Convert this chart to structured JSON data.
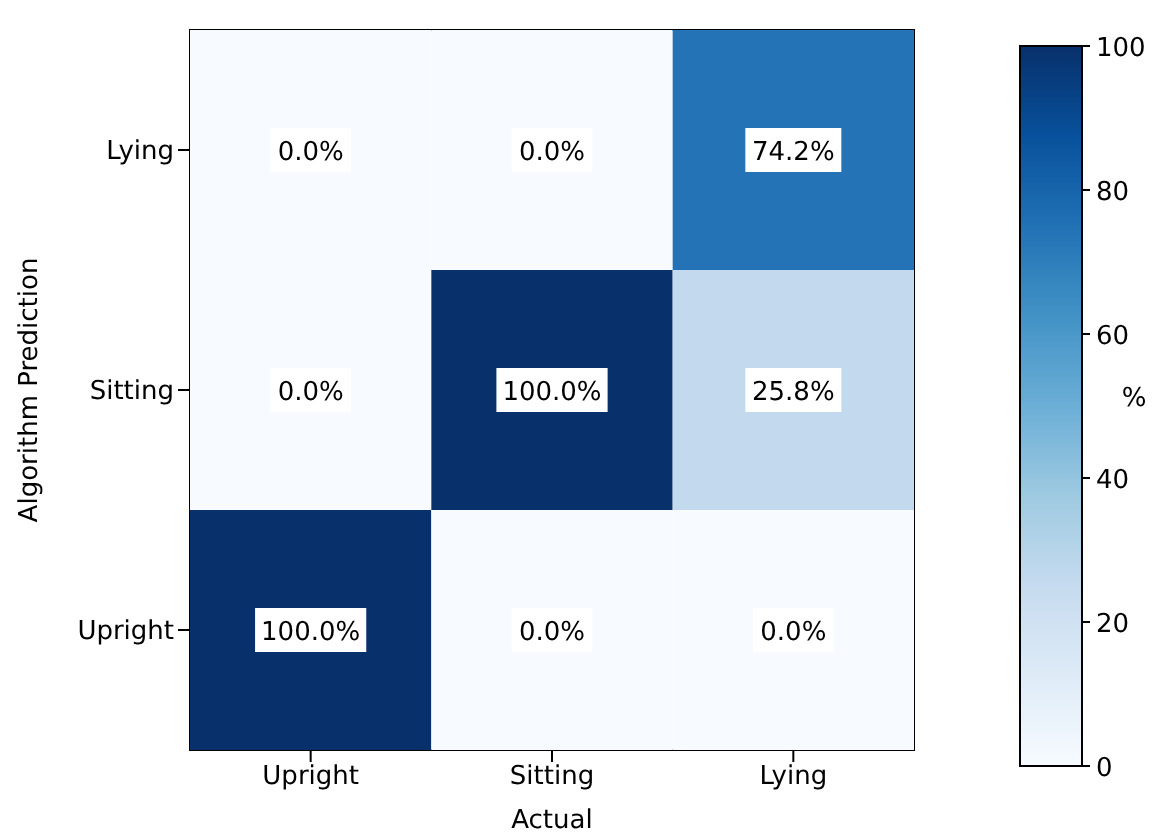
{
  "chart_data": {
    "type": "heatmap",
    "xlabel": "Actual",
    "ylabel": "Algorithm Prediction",
    "clabel": "%",
    "categories": [
      "Upright",
      "Sitting",
      "Lying"
    ],
    "y_categories": [
      "Lying",
      "Sitting",
      "Upright"
    ],
    "cells": [
      [
        0,
        0,
        74.2
      ],
      [
        0,
        100,
        25.8
      ],
      [
        100,
        0,
        0
      ]
    ],
    "cell_labels": [
      [
        "0.0%",
        "0.0%",
        "74.2%"
      ],
      [
        "0.0%",
        "100.0%",
        "25.8%"
      ],
      [
        "100.0%",
        "0.0%",
        "0.0%"
      ]
    ],
    "clim": [
      0,
      100
    ],
    "cticks": [
      0,
      20,
      40,
      60,
      80,
      100
    ]
  }
}
